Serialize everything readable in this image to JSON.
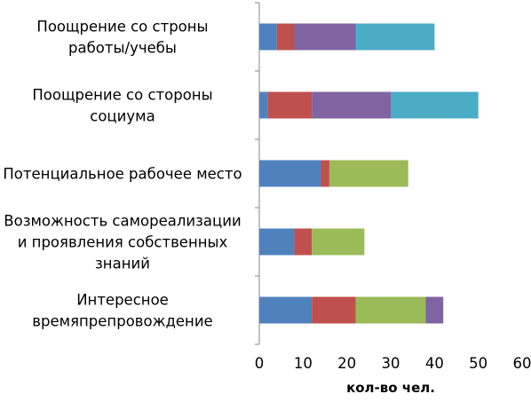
{
  "chart_data": {
    "type": "bar",
    "orientation": "horizontal",
    "stacked": true,
    "categories": [
      [
        "Поощрение со строны",
        "работы/учебы"
      ],
      [
        "Поощрение со стороны",
        "социума"
      ],
      [
        "Потенциальное рабочее место"
      ],
      [
        "Возможность самореализации",
        "и проявления собственных",
        "знаний"
      ],
      [
        "Интересное",
        "времяпрепровождение"
      ]
    ],
    "series": [
      {
        "values": [
          4,
          2,
          14,
          8,
          12
        ]
      },
      {
        "values": [
          4,
          10,
          2,
          4,
          10
        ]
      },
      {
        "values": [
          0,
          0,
          18,
          12,
          16
        ]
      },
      {
        "values": [
          14,
          18,
          0,
          0,
          4
        ]
      },
      {
        "values": [
          18,
          20,
          0,
          0,
          0
        ]
      }
    ],
    "xlim": [
      0,
      60
    ],
    "xticks": [
      0,
      10,
      20,
      30,
      40,
      50,
      60
    ],
    "xlabel": "кол-во чел.",
    "grid": false,
    "legend": false
  },
  "colors": [
    "#4F81BD",
    "#C0504D",
    "#9BBB59",
    "#8064A2",
    "#4BACC6"
  ]
}
